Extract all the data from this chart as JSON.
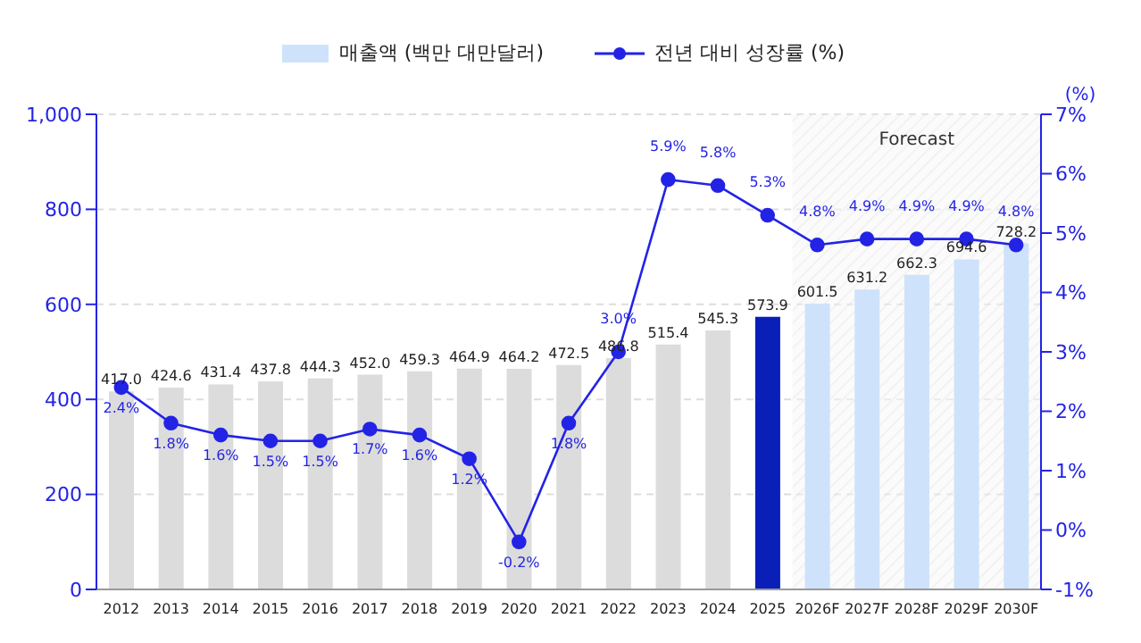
{
  "chart_data": {
    "type": "bar",
    "y2label": "(%)",
    "categories": [
      "2012",
      "2013",
      "2014",
      "2015",
      "2016",
      "2017",
      "2018",
      "2019",
      "2020",
      "2021",
      "2022",
      "2023",
      "2024",
      "2025",
      "2026F",
      "2027F",
      "2028F",
      "2029F",
      "2030F"
    ],
    "series": [
      {
        "name": "매출액 (백만 대만달러)",
        "color": "#cfe2fb",
        "colors": [
          "#dcdcdc",
          "#dcdcdc",
          "#dcdcdc",
          "#dcdcdc",
          "#dcdcdc",
          "#dcdcdc",
          "#dcdcdc",
          "#dcdcdc",
          "#dcdcdc",
          "#dcdcdc",
          "#dcdcdc",
          "#dcdcdc",
          "#dcdcdc",
          "#0a1fb8",
          "#cfe2fb",
          "#cfe2fb",
          "#cfe2fb",
          "#cfe2fb",
          "#cfe2fb"
        ],
        "values": [
          417.0,
          424.6,
          431.4,
          437.8,
          444.3,
          452.0,
          459.3,
          464.9,
          464.2,
          472.5,
          486.8,
          515.4,
          545.3,
          573.9,
          601.5,
          631.2,
          662.3,
          694.6,
          728.2
        ],
        "value_labels": [
          "417.0",
          "424.6",
          "431.4",
          "437.8",
          "444.3",
          "452.0",
          "459.3",
          "464.9",
          "464.2",
          "472.5",
          "486.8",
          "515.4",
          "545.3",
          "573.9",
          "601.5",
          "631.2",
          "662.3",
          "694.6",
          "728.2"
        ]
      },
      {
        "name": "전년 대비 성장률 (%)",
        "type": "line",
        "axis": "y2",
        "color": "#2323e6",
        "marker": "circle",
        "values": [
          2.4,
          1.8,
          1.6,
          1.5,
          1.5,
          1.7,
          1.6,
          1.2,
          -0.2,
          1.8,
          3.0,
          5.9,
          5.8,
          5.3,
          4.8,
          4.9,
          4.9,
          4.9,
          4.8
        ],
        "value_labels": [
          "2.4%",
          "1.8%",
          "1.6%",
          "1.5%",
          "1.5%",
          "1.7%",
          "1.6%",
          "1.2%",
          "-0.2%",
          "1.8%",
          "3.0%",
          "5.9%",
          "5.8%",
          "5.3%",
          "4.8%",
          "4.9%",
          "4.9%",
          "4.9%",
          "4.8%"
        ]
      }
    ],
    "ylim": [
      0,
      1000
    ],
    "yticks": [
      0,
      200,
      400,
      600,
      800,
      {
        "value": 1000,
        "label": "1,000"
      }
    ],
    "y2lim": [
      -1,
      7
    ],
    "y2ticks": [
      {
        "value": -1,
        "label": "-1%"
      },
      {
        "value": 0,
        "label": "0%"
      },
      {
        "value": 1,
        "label": "1%"
      },
      {
        "value": 2,
        "label": "2%"
      },
      {
        "value": 3,
        "label": "3%"
      },
      {
        "value": 4,
        "label": "4%"
      },
      {
        "value": 5,
        "label": "5%"
      },
      {
        "value": 6,
        "label": "6%"
      },
      {
        "value": 7,
        "label": "7%"
      }
    ],
    "bands": [
      {
        "axis": "x",
        "from": "2026F",
        "to": "2030F",
        "label": "Forecast",
        "color": "#e6e6e6"
      }
    ],
    "grid": "y",
    "legend": "top"
  }
}
